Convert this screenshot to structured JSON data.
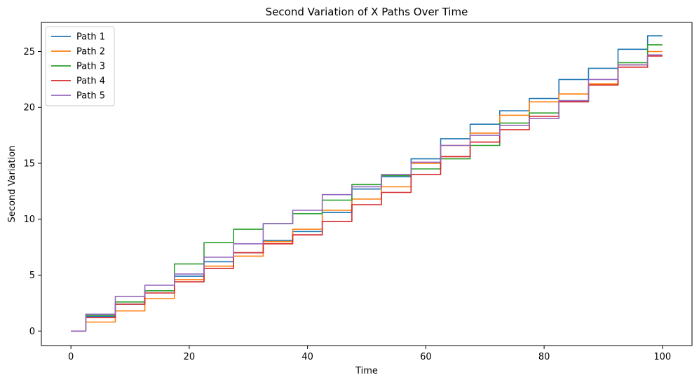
{
  "chart_data": {
    "type": "line",
    "title": "Second Variation of X Paths Over Time",
    "xlabel": "Time",
    "ylabel": "Second Variation",
    "xlim": [
      -5,
      105
    ],
    "ylim": [
      -1.3,
      27.6
    ],
    "xticks": [
      0,
      20,
      40,
      60,
      80,
      100
    ],
    "yticks": [
      0,
      5,
      10,
      15,
      20,
      25
    ],
    "grid": false,
    "legend_position": "top-left",
    "series": [
      {
        "name": "Path 1",
        "color": "#1f77b4",
        "x": [
          0,
          5,
          10,
          15,
          20,
          25,
          30,
          35,
          40,
          45,
          50,
          55,
          60,
          65,
          70,
          75,
          80,
          85,
          90,
          95,
          100
        ],
        "values": [
          0,
          1.3,
          2.4,
          3.6,
          4.9,
          6.2,
          7.0,
          8.1,
          8.9,
          10.6,
          12.7,
          13.8,
          15.4,
          17.2,
          18.5,
          19.7,
          20.8,
          22.5,
          23.5,
          25.2,
          26.4
        ]
      },
      {
        "name": "Path 2",
        "color": "#ff7f0e",
        "x": [
          0,
          5,
          10,
          15,
          20,
          25,
          30,
          35,
          40,
          45,
          50,
          55,
          60,
          65,
          70,
          75,
          80,
          85,
          90,
          95,
          100
        ],
        "values": [
          0,
          0.8,
          1.8,
          2.9,
          4.6,
          5.8,
          6.7,
          8.0,
          9.1,
          10.8,
          11.8,
          12.9,
          15.0,
          16.6,
          17.7,
          19.3,
          20.5,
          21.2,
          22.1,
          23.8,
          25.0
        ]
      },
      {
        "name": "Path 3",
        "color": "#2ca02c",
        "x": [
          0,
          5,
          10,
          15,
          20,
          25,
          30,
          35,
          40,
          45,
          50,
          55,
          60,
          65,
          70,
          75,
          80,
          85,
          90,
          95,
          100
        ],
        "values": [
          0,
          1.4,
          2.6,
          3.6,
          6.0,
          7.9,
          9.1,
          9.6,
          10.5,
          11.7,
          13.1,
          13.9,
          14.5,
          15.4,
          16.6,
          18.6,
          19.5,
          20.6,
          22.0,
          24.0,
          25.6
        ]
      },
      {
        "name": "Path 4",
        "color": "#d62728",
        "x": [
          0,
          5,
          10,
          15,
          20,
          25,
          30,
          35,
          40,
          45,
          50,
          55,
          60,
          65,
          70,
          75,
          80,
          85,
          90,
          95,
          100
        ],
        "values": [
          0,
          1.2,
          2.4,
          3.4,
          4.4,
          5.6,
          7.0,
          7.8,
          8.6,
          9.8,
          11.3,
          12.4,
          14.0,
          15.6,
          16.9,
          18.0,
          19.2,
          20.5,
          22.0,
          23.6,
          24.6
        ]
      },
      {
        "name": "Path 5",
        "color": "#9467bd",
        "x": [
          0,
          5,
          10,
          15,
          20,
          25,
          30,
          35,
          40,
          45,
          50,
          55,
          60,
          65,
          70,
          75,
          80,
          85,
          90,
          95,
          100
        ],
        "values": [
          0,
          1.5,
          3.1,
          4.1,
          5.1,
          6.6,
          7.8,
          9.6,
          10.8,
          12.2,
          12.9,
          14.0,
          15.1,
          16.6,
          17.5,
          18.4,
          19.0,
          20.6,
          22.5,
          23.8,
          24.7
        ]
      }
    ]
  }
}
